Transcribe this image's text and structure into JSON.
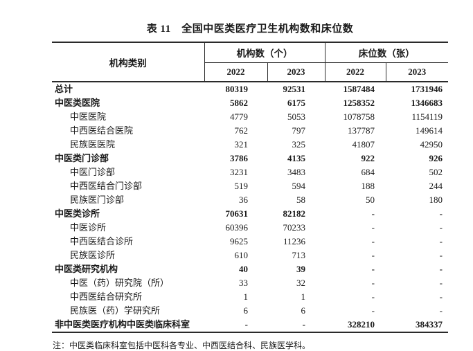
{
  "title": "表 11　全国中医类医疗卫生机构数和床位数",
  "colors": {
    "text": "#1a1a1a",
    "border": "#2a2a2a",
    "background": "#ffffff"
  },
  "table": {
    "category_header": "机构类别",
    "group_headers": [
      {
        "label": "机构数（个）"
      },
      {
        "label": "床位数（张）"
      }
    ],
    "year_headers": [
      "2022",
      "2023",
      "2022",
      "2023"
    ],
    "rows": [
      {
        "label": "总计",
        "bold": true,
        "indent": 0,
        "values": [
          "80319",
          "92531",
          "1587484",
          "1731946"
        ]
      },
      {
        "label": "中医类医院",
        "bold": true,
        "indent": 0,
        "values": [
          "5862",
          "6175",
          "1258352",
          "1346683"
        ]
      },
      {
        "label": "中医医院",
        "bold": false,
        "indent": 1,
        "values": [
          "4779",
          "5053",
          "1078758",
          "1154119"
        ]
      },
      {
        "label": "中西医结合医院",
        "bold": false,
        "indent": 1,
        "values": [
          "762",
          "797",
          "137787",
          "149614"
        ]
      },
      {
        "label": "民族医医院",
        "bold": false,
        "indent": 1,
        "values": [
          "321",
          "325",
          "41807",
          "42950"
        ]
      },
      {
        "label": "中医类门诊部",
        "bold": true,
        "indent": 0,
        "values": [
          "3786",
          "4135",
          "922",
          "926"
        ]
      },
      {
        "label": "中医门诊部",
        "bold": false,
        "indent": 1,
        "values": [
          "3231",
          "3483",
          "684",
          "502"
        ]
      },
      {
        "label": "中西医结合门诊部",
        "bold": false,
        "indent": 1,
        "values": [
          "519",
          "594",
          "188",
          "244"
        ]
      },
      {
        "label": "民族医门诊部",
        "bold": false,
        "indent": 1,
        "values": [
          "36",
          "58",
          "50",
          "180"
        ]
      },
      {
        "label": "中医类诊所",
        "bold": true,
        "indent": 0,
        "values": [
          "70631",
          "82182",
          "-",
          "-"
        ]
      },
      {
        "label": "中医诊所",
        "bold": false,
        "indent": 1,
        "values": [
          "60396",
          "70233",
          "-",
          "-"
        ]
      },
      {
        "label": "中西医结合诊所",
        "bold": false,
        "indent": 1,
        "values": [
          "9625",
          "11236",
          "-",
          "-"
        ]
      },
      {
        "label": "民族医诊所",
        "bold": false,
        "indent": 1,
        "values": [
          "610",
          "713",
          "-",
          "-"
        ]
      },
      {
        "label": "中医类研究机构",
        "bold": true,
        "indent": 0,
        "values": [
          "40",
          "39",
          "-",
          "-"
        ]
      },
      {
        "label": "中医（药）研究院（所）",
        "bold": false,
        "indent": 1,
        "values": [
          "33",
          "32",
          "-",
          "-"
        ]
      },
      {
        "label": "中西医结合研究所",
        "bold": false,
        "indent": 1,
        "values": [
          "1",
          "1",
          "-",
          "-"
        ]
      },
      {
        "label": "民族医（药）学研究所",
        "bold": false,
        "indent": 1,
        "values": [
          "6",
          "6",
          "-",
          "-"
        ]
      },
      {
        "label": "非中医类医疗机构中医类临床科室",
        "bold": true,
        "indent": 0,
        "values": [
          "-",
          "-",
          "328210",
          "384337"
        ]
      }
    ]
  },
  "note": "注：中医类临床科室包括中医科各专业、中西医结合科、民族医学科。"
}
